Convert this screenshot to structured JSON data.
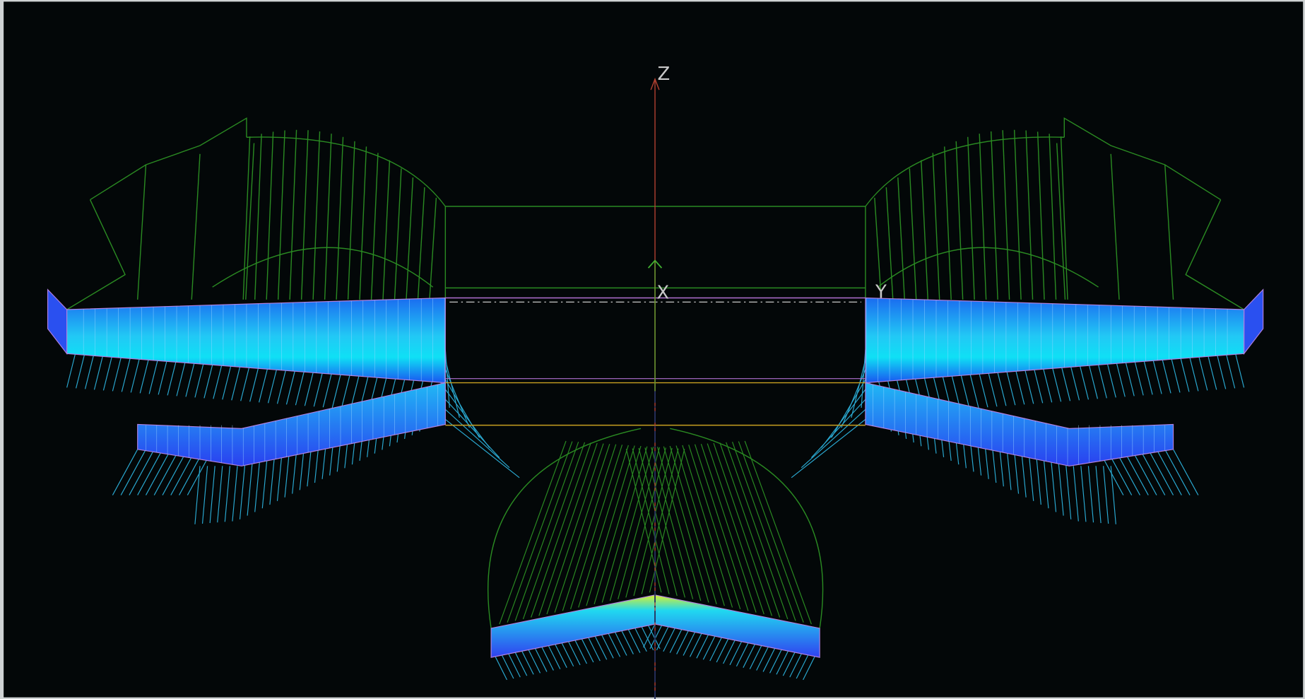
{
  "axes": {
    "z": "Z",
    "x": "X",
    "y": "Y"
  }
}
